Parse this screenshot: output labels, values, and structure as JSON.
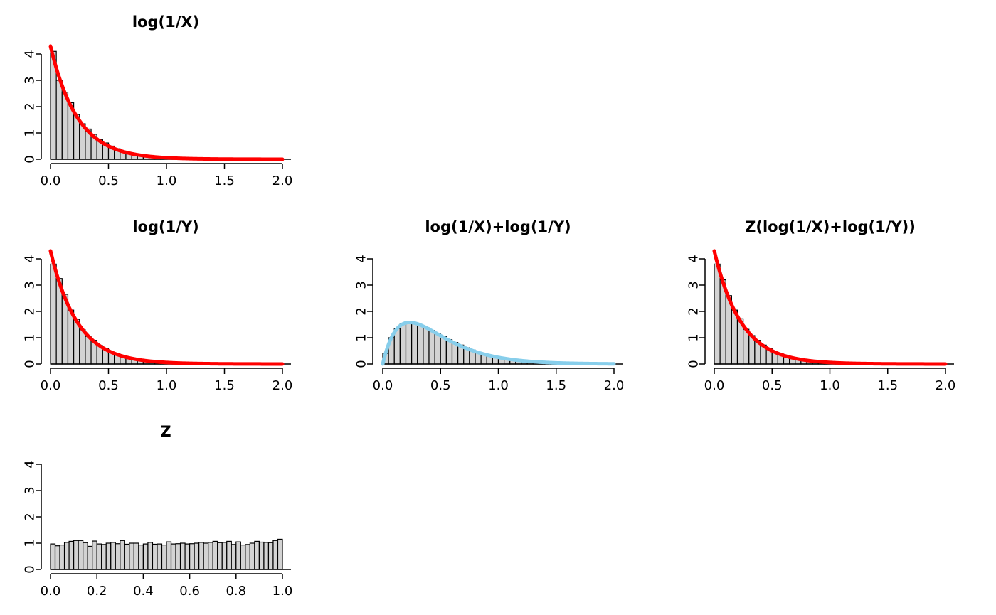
{
  "chart_data": [
    {
      "type": "histogram",
      "title": "log(1/X)",
      "xlim": [
        0,
        2
      ],
      "ylim": [
        0,
        4
      ],
      "x_ticks": [
        "0.0",
        "0.5",
        "1.0",
        "1.5",
        "2.0"
      ],
      "y_ticks": [
        "0",
        "1",
        "2",
        "3",
        "4"
      ],
      "bin_width": 0.05,
      "bin_start": 0,
      "bar_heights": [
        4.1,
        3.0,
        2.55,
        2.15,
        1.7,
        1.35,
        1.15,
        0.95,
        0.75,
        0.62,
        0.5,
        0.4,
        0.3,
        0.25,
        0.2,
        0.16,
        0.13,
        0.1,
        0.08,
        0.06,
        0.05,
        0.04,
        0.03,
        0.02,
        0.02,
        0.01,
        0.01,
        0.01,
        0.01,
        0.0,
        0.0,
        0.0,
        0.0,
        0.0,
        0.0,
        0.0,
        0.0,
        0.0,
        0.0,
        0.0,
        0.0
      ],
      "curve": {
        "formula": "exponential density",
        "rate": 4.3,
        "color": "#ff0000",
        "x_range": [
          0,
          2
        ]
      }
    },
    {
      "type": "histogram",
      "title": "log(1/Y)",
      "xlim": [
        0,
        2
      ],
      "ylim": [
        0,
        4
      ],
      "x_ticks": [
        "0.0",
        "0.5",
        "1.0",
        "1.5",
        "2.0"
      ],
      "y_ticks": [
        "0",
        "1",
        "2",
        "3",
        "4"
      ],
      "bin_width": 0.05,
      "bin_start": 0,
      "bar_heights": [
        3.8,
        3.25,
        2.65,
        2.05,
        1.7,
        1.3,
        1.05,
        0.9,
        0.7,
        0.58,
        0.46,
        0.38,
        0.3,
        0.24,
        0.19,
        0.15,
        0.12,
        0.09,
        0.07,
        0.06,
        0.05,
        0.04,
        0.03,
        0.02,
        0.02,
        0.01,
        0.01,
        0.01,
        0.0,
        0.0,
        0.0,
        0.0,
        0.0,
        0.0,
        0.0,
        0.0,
        0.0,
        0.0,
        0.0,
        0.0,
        0.0
      ],
      "curve": {
        "formula": "exponential density",
        "rate": 4.3,
        "color": "#ff0000",
        "x_range": [
          0,
          2
        ]
      }
    },
    {
      "type": "histogram",
      "title": "log(1/X)+log(1/Y)",
      "xlim": [
        0,
        2
      ],
      "ylim": [
        0,
        4
      ],
      "x_ticks": [
        "0.0",
        "0.5",
        "1.0",
        "1.5",
        "2.0"
      ],
      "y_ticks": [
        "0",
        "1",
        "2",
        "3",
        "4"
      ],
      "bin_width": 0.05,
      "bin_start": 0,
      "bar_heights": [
        0.4,
        1.0,
        1.35,
        1.55,
        1.6,
        1.55,
        1.48,
        1.38,
        1.28,
        1.17,
        1.05,
        0.93,
        0.82,
        0.72,
        0.62,
        0.53,
        0.45,
        0.38,
        0.32,
        0.27,
        0.22,
        0.18,
        0.15,
        0.12,
        0.1,
        0.08,
        0.06,
        0.05,
        0.04,
        0.03,
        0.03,
        0.02,
        0.02,
        0.01,
        0.01,
        0.01,
        0.01,
        0.0,
        0.0,
        0.0,
        0.0
      ],
      "curve": {
        "formula": "gamma(shape=2) density",
        "rate": 4.3,
        "color": "#87ceeb",
        "x_range": [
          0,
          2
        ]
      }
    },
    {
      "type": "histogram",
      "title": "Z(log(1/X)+log(1/Y))",
      "xlim": [
        0,
        2
      ],
      "ylim": [
        0,
        4
      ],
      "x_ticks": [
        "0.0",
        "0.5",
        "1.0",
        "1.5",
        "2.0"
      ],
      "y_ticks": [
        "0",
        "1",
        "2",
        "3",
        "4"
      ],
      "bin_width": 0.05,
      "bin_start": 0,
      "bar_heights": [
        3.8,
        3.2,
        2.6,
        2.05,
        1.72,
        1.32,
        1.08,
        0.9,
        0.72,
        0.58,
        0.46,
        0.38,
        0.3,
        0.24,
        0.19,
        0.15,
        0.12,
        0.09,
        0.07,
        0.06,
        0.05,
        0.04,
        0.03,
        0.02,
        0.02,
        0.01,
        0.01,
        0.01,
        0.0,
        0.0,
        0.0,
        0.0,
        0.0,
        0.0,
        0.0,
        0.0,
        0.0,
        0.0,
        0.0,
        0.0,
        0.0
      ],
      "curve": {
        "formula": "exponential density",
        "rate": 4.3,
        "color": "#ff0000",
        "x_range": [
          0,
          2
        ]
      }
    },
    {
      "type": "histogram",
      "title": "Z",
      "xlim": [
        0,
        1
      ],
      "ylim": [
        0,
        4
      ],
      "x_ticks": [
        "0.0",
        "0.2",
        "0.4",
        "0.6",
        "0.8",
        "1.0"
      ],
      "y_ticks": [
        "0",
        "1",
        "2",
        "3",
        "4"
      ],
      "bin_width": 0.02,
      "bin_start": 0,
      "bar_heights": [
        0.97,
        0.9,
        0.93,
        1.03,
        1.07,
        1.1,
        1.1,
        1.02,
        0.88,
        1.08,
        0.97,
        0.95,
        1.0,
        1.03,
        0.98,
        1.1,
        0.96,
        1.0,
        1.0,
        0.93,
        0.97,
        1.03,
        0.96,
        0.97,
        0.93,
        1.05,
        0.97,
        0.98,
        1.0,
        0.97,
        0.98,
        1.0,
        1.03,
        1.0,
        1.03,
        1.07,
        1.02,
        1.03,
        1.07,
        0.95,
        1.05,
        0.93,
        0.95,
        1.0,
        1.07,
        1.04,
        1.03,
        1.02,
        1.1,
        1.15
      ]
    }
  ]
}
